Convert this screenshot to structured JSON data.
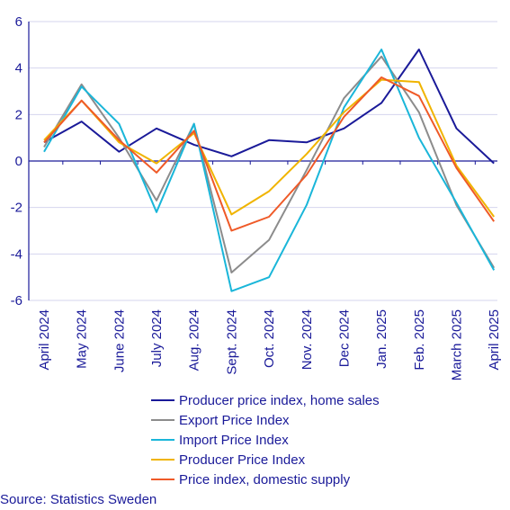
{
  "chart_data": {
    "type": "line",
    "categories": [
      "April 2024",
      "May 2024",
      "June 2024",
      "July 2024",
      "Aug. 2024",
      "Sept. 2024",
      "Oct. 2024",
      "Nov. 2024",
      "Dec 2024",
      "Jan. 2025",
      "Feb. 2025",
      "March 2025",
      "April 2025"
    ],
    "ylim": [
      -6,
      6
    ],
    "yticks": [
      6,
      4,
      2,
      0,
      -2,
      -4,
      -6
    ],
    "grid": true,
    "legend_position": "bottom",
    "series": [
      {
        "name": "Producer price index, home sales",
        "color": "#1a1a99",
        "values": [
          0.8,
          1.7,
          0.4,
          1.4,
          0.7,
          0.2,
          0.9,
          0.8,
          1.4,
          2.5,
          4.8,
          1.4,
          -0.1
        ]
      },
      {
        "name": "Export Price Index",
        "color": "#8c8c8c",
        "values": [
          0.6,
          3.3,
          1.0,
          -1.7,
          1.6,
          -4.8,
          -3.4,
          -0.4,
          2.7,
          4.5,
          2.1,
          -1.9,
          -4.6
        ]
      },
      {
        "name": "Import Price Index",
        "color": "#1ab6d9",
        "values": [
          0.4,
          3.2,
          1.6,
          -2.2,
          1.6,
          -5.6,
          -5.0,
          -1.9,
          2.3,
          4.8,
          1.0,
          -1.8,
          -4.7
        ]
      },
      {
        "name": "Producer Price Index",
        "color": "#f0b400",
        "values": [
          0.9,
          2.6,
          0.8,
          -0.1,
          1.2,
          -2.3,
          -1.3,
          0.3,
          2.1,
          3.5,
          3.4,
          -0.2,
          -2.4
        ]
      },
      {
        "name": "Price index, domestic supply",
        "color": "#ef5a28",
        "values": [
          0.8,
          2.6,
          0.9,
          -0.5,
          1.3,
          -3.0,
          -2.4,
          -0.6,
          1.9,
          3.6,
          2.8,
          -0.3,
          -2.6
        ]
      }
    ]
  },
  "footer": {
    "source": "Source: Statistics Sweden"
  }
}
